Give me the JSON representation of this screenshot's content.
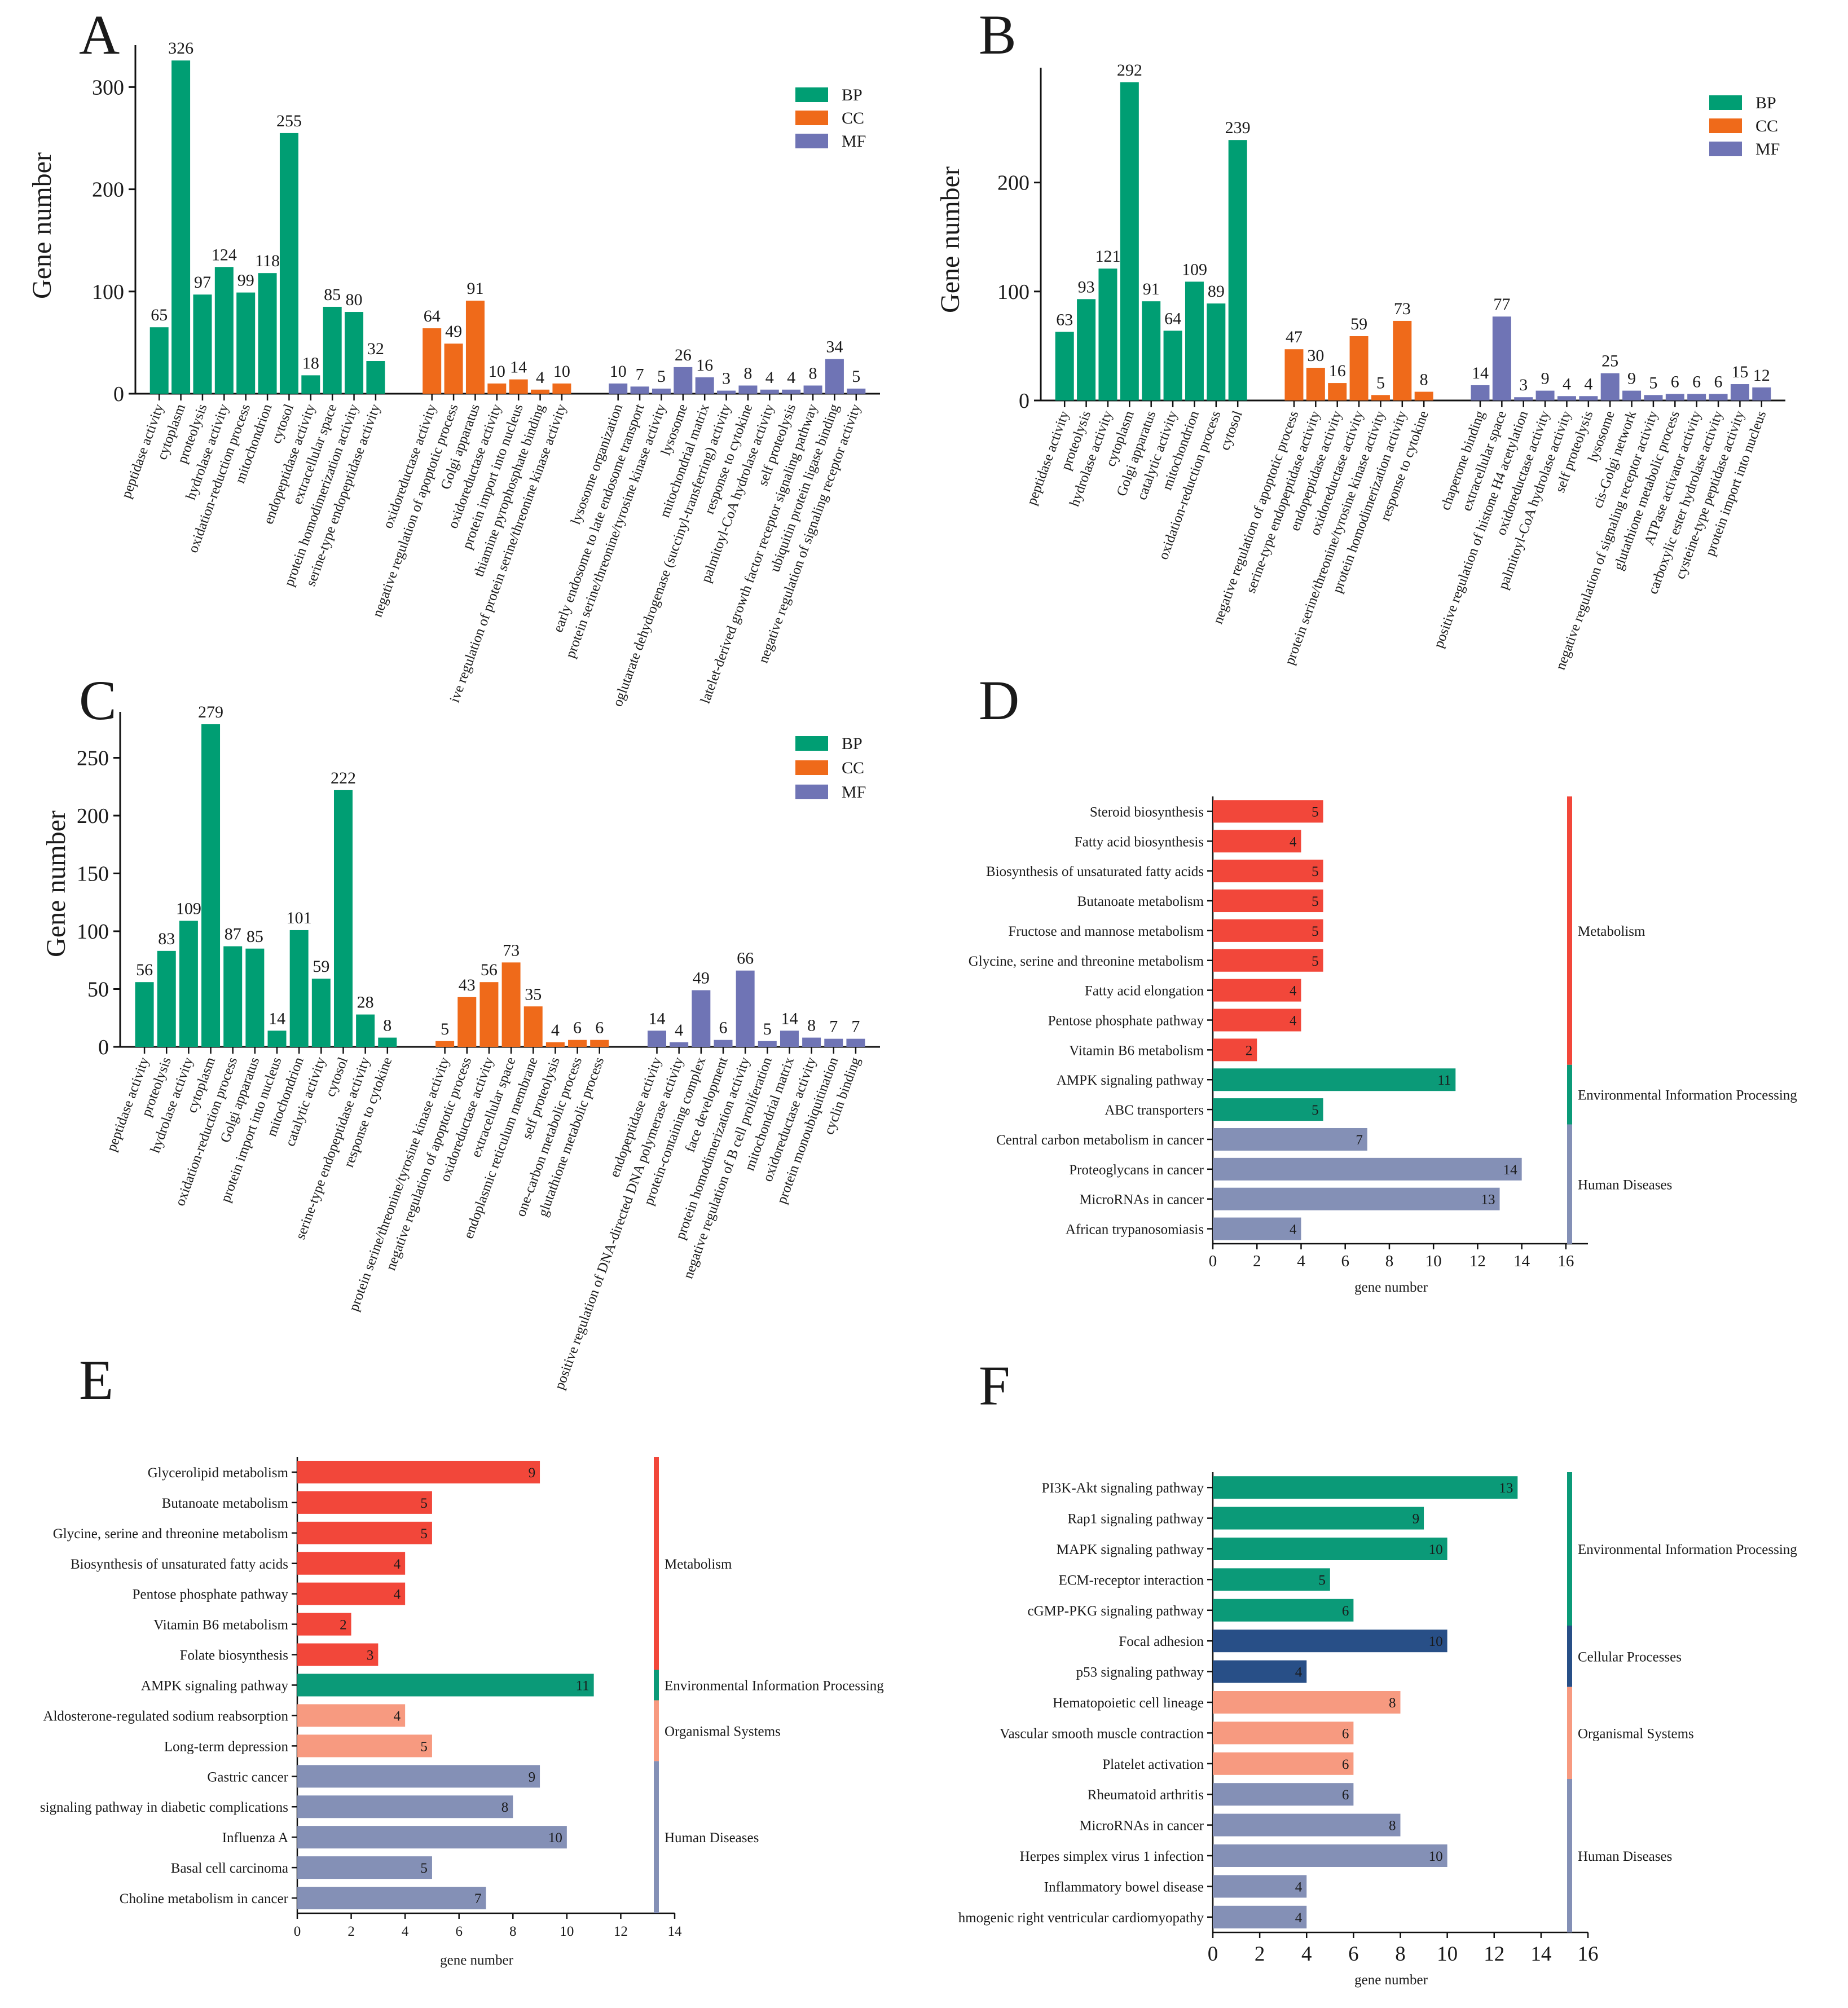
{
  "colors": {
    "BP": "#009e73",
    "CC": "#ef6a1a",
    "MF": "#6f74b5",
    "Metabolism": "#f2473a",
    "Environmental Information Processing": "#0b9a78",
    "Human Diseases": "#8490b6",
    "Organismal Systems": "#f79a80",
    "Cellular Processes": "#284f87"
  },
  "chart_data": [
    {
      "panel": "A",
      "type": "bar",
      "ylabel": "Gene number",
      "ylim": [
        0,
        330
      ],
      "yticks": [
        0,
        100,
        200,
        300
      ],
      "legend": [
        "BP",
        "CC",
        "MF"
      ],
      "groups": [
        {
          "name": "BP",
          "categories": [
            "peptidase activity",
            "cytoplasm",
            "proteolysis",
            "hydrolase activity",
            "oxidation-reduction process",
            "mitochondrion",
            "cytosol",
            "endopeptidase activity",
            "extracellular space",
            "protein homodimerization activity",
            "serine-type endopeptidase activity"
          ],
          "values": [
            65,
            326,
            97,
            124,
            99,
            118,
            255,
            18,
            85,
            80,
            32
          ]
        },
        {
          "name": "CC",
          "categories": [
            "oxidoreductase activity",
            "negative regulation of apoptotic process",
            "Golgi apparatus",
            "oxidoreductase activity",
            "protein import into nucleus",
            "thiamine pyrophosphate binding",
            "ive regulation of protein serine/threonine kinase activity"
          ],
          "values": [
            64,
            49,
            91,
            10,
            14,
            4,
            10
          ]
        },
        {
          "name": "MF",
          "categories": [
            "lysosome organization",
            "early endosome to late endosome transport",
            "protein serine/threonine/tyrosine kinase activity",
            "lysosome",
            "mitochondrial matrix",
            "oglutarate dehydrogenase (succinyl-transferring) activity",
            "response to cytokine",
            "palmitoyl-CoA hydrolase activity",
            "self proteolysis",
            "latelet-derived growth factor receptor signaling pathway",
            "ubiquitin protein ligase binding",
            "negative regulation of signaling receptor activity"
          ],
          "values": [
            10,
            7,
            5,
            26,
            16,
            3,
            8,
            4,
            4,
            8,
            34,
            5
          ]
        }
      ]
    },
    {
      "panel": "B",
      "type": "bar",
      "ylabel": "Gene number",
      "ylim": [
        0,
        295
      ],
      "yticks": [
        0,
        100,
        200
      ],
      "legend": [
        "BP",
        "CC",
        "MF"
      ],
      "groups": [
        {
          "name": "BP",
          "categories": [
            "peptidase activity",
            "proteolysis",
            "hydrolase activity",
            "cytoplasm",
            "Golgi apparatus",
            "catalytic activity",
            "mitochondrion",
            "oxidation-reduction process",
            "cytosol"
          ],
          "values": [
            63,
            93,
            121,
            292,
            91,
            64,
            109,
            89,
            239
          ]
        },
        {
          "name": "CC",
          "categories": [
            "negative regulation of apoptotic process",
            "serine-type endopeptidase activity",
            "endopeptidase activity",
            "oxidoreductase activity",
            "protein serine/threonine/tyrosine kinase activity",
            "protein homodimerization activity",
            "response to cytokine"
          ],
          "values": [
            47,
            30,
            16,
            59,
            5,
            73,
            8
          ]
        },
        {
          "name": "MF",
          "categories": [
            "chaperone binding",
            "extracellular space",
            "positive regulation of histone H4 acetylation",
            "oxidoreductase activity",
            "palmitoyl-CoA hydrolase activity",
            "self proteolysis",
            "lysosome",
            "cis-Golgi network",
            "negative regulation of signaling receptor activity",
            "glutathione metabolic process",
            "ATPase activator activity",
            "carboxylic ester hydrolase activity",
            "cysteine-type peptidase activity",
            "protein import into nucleus"
          ],
          "values": [
            14,
            77,
            3,
            9,
            4,
            4,
            25,
            9,
            5,
            6,
            6,
            6,
            15,
            12
          ]
        }
      ]
    },
    {
      "panel": "C",
      "type": "bar",
      "ylabel": "Gene number",
      "ylim": [
        0,
        280
      ],
      "yticks": [
        0,
        50,
        100,
        150,
        200,
        250
      ],
      "legend": [
        "BP",
        "CC",
        "MF"
      ],
      "groups": [
        {
          "name": "BP",
          "categories": [
            "peptidase activity",
            "proteolysis",
            "hydrolase activity",
            "cytoplasm",
            "oxidation-reduction process",
            "Golgi apparatus",
            "protein import into nucleus",
            "mitochondrion",
            "catalytic activity",
            "cytosol",
            "serine-type endopeptidase activity",
            "response to cytokine"
          ],
          "values": [
            56,
            83,
            109,
            279,
            87,
            85,
            14,
            101,
            59,
            222,
            28,
            8
          ]
        },
        {
          "name": "CC",
          "categories": [
            "protein serine/threonine/tyrosine kinase activity",
            "negative regulation of apoptotic process",
            "oxidoreductase activity",
            "extracellular space",
            "endoplasmic reticulum membrane",
            "self proteolysis",
            "one-carbon metabolic process",
            "glutathione metabolic process"
          ],
          "values": [
            5,
            43,
            56,
            73,
            35,
            4,
            6,
            6
          ]
        },
        {
          "name": "MF",
          "categories": [
            "endopeptidase activity",
            "positive regulation of DNA-directed DNA polymerase activity",
            "protein-containing complex",
            "face development",
            "protein homodimerization activity",
            "negative regulation of B cell proliferation",
            "mitochondrial matrix",
            "oxidoreductase activity",
            "protein monoubiquitination",
            "cyclin binding"
          ],
          "values": [
            14,
            4,
            49,
            6,
            66,
            5,
            14,
            8,
            7,
            7
          ]
        }
      ]
    },
    {
      "panel": "D",
      "type": "bar",
      "orientation": "horizontal",
      "xlabel": "gene number",
      "xlim": [
        0,
        17
      ],
      "xticks": [
        0,
        2,
        4,
        6,
        8,
        10,
        12,
        14,
        16
      ],
      "categories": [
        "Steroid biosynthesis",
        "Fatty acid biosynthesis",
        "Biosynthesis of unsaturated fatty acids",
        "Butanoate metabolism",
        "Fructose and mannose metabolism",
        "Glycine, serine and threonine metabolism",
        "Fatty acid elongation",
        "Pentose phosphate pathway",
        "Vitamin B6 metabolism",
        "AMPK signaling pathway",
        "ABC transporters",
        "Central carbon metabolism in cancer",
        "Proteoglycans in cancer",
        "MicroRNAs in cancer",
        "African trypanosomiasis"
      ],
      "values": [
        5,
        4,
        5,
        5,
        5,
        5,
        4,
        4,
        2,
        11,
        5,
        7,
        14,
        13,
        4
      ],
      "class": [
        "Metabolism",
        "Metabolism",
        "Metabolism",
        "Metabolism",
        "Metabolism",
        "Metabolism",
        "Metabolism",
        "Metabolism",
        "Metabolism",
        "Environmental Information Processing",
        "Environmental Information Processing",
        "Human Diseases",
        "Human Diseases",
        "Human Diseases",
        "Human Diseases"
      ],
      "classes": [
        "Metabolism",
        "Environmental Information Processing",
        "Human Diseases"
      ]
    },
    {
      "panel": "E",
      "type": "bar",
      "orientation": "horizontal",
      "xlabel": "gene number",
      "xlim": [
        0,
        14
      ],
      "xticks": [
        0,
        2,
        4,
        6,
        8,
        10,
        12,
        14
      ],
      "categories": [
        "Glycerolipid metabolism",
        "Butanoate metabolism",
        "Glycine, serine and threonine metabolism",
        "Biosynthesis of unsaturated fatty acids",
        "Pentose phosphate pathway",
        "Vitamin B6 metabolism",
        "Folate biosynthesis",
        "AMPK signaling pathway",
        "Aldosterone-regulated sodium reabsorption",
        "Long-term depression",
        "Gastric cancer",
        "signaling pathway in diabetic complications",
        "Influenza A",
        "Basal cell carcinoma",
        "Choline metabolism in cancer"
      ],
      "values": [
        9,
        5,
        5,
        4,
        4,
        2,
        3,
        11,
        4,
        5,
        9,
        8,
        10,
        5,
        7
      ],
      "class": [
        "Metabolism",
        "Metabolism",
        "Metabolism",
        "Metabolism",
        "Metabolism",
        "Metabolism",
        "Metabolism",
        "Environmental Information Processing",
        "Organismal Systems",
        "Organismal Systems",
        "Human Diseases",
        "Human Diseases",
        "Human Diseases",
        "Human Diseases",
        "Human Diseases"
      ],
      "classes": [
        "Metabolism",
        "Environmental Information Processing",
        "Organismal Systems",
        "Human Diseases"
      ]
    },
    {
      "panel": "F",
      "type": "bar",
      "orientation": "horizontal",
      "xlabel": "gene number",
      "xlim": [
        0,
        16
      ],
      "xticks": [
        0,
        2,
        4,
        6,
        8,
        10,
        12,
        14,
        16
      ],
      "categories": [
        "PI3K-Akt signaling pathway",
        "Rap1 signaling pathway",
        "MAPK signaling pathway",
        "ECM-receptor interaction",
        "cGMP-PKG signaling pathway",
        "Focal adhesion",
        "p53 signaling pathway",
        "Hematopoietic cell lineage",
        "Vascular smooth muscle contraction",
        "Platelet activation",
        "Rheumatoid arthritis",
        "MicroRNAs in cancer",
        "Herpes simplex virus 1 infection",
        "Inflammatory bowel disease",
        "hmogenic right ventricular cardiomyopathy"
      ],
      "values": [
        13,
        9,
        10,
        5,
        6,
        10,
        4,
        8,
        6,
        6,
        6,
        8,
        10,
        4,
        4
      ],
      "class": [
        "Environmental Information Processing",
        "Environmental Information Processing",
        "Environmental Information Processing",
        "Environmental Information Processing",
        "Environmental Information Processing",
        "Cellular Processes",
        "Cellular Processes",
        "Organismal Systems",
        "Organismal Systems",
        "Organismal Systems",
        "Human Diseases",
        "Human Diseases",
        "Human Diseases",
        "Human Diseases",
        "Human Diseases"
      ],
      "classes": [
        "Environmental Information Processing",
        "Cellular Processes",
        "Organismal Systems",
        "Human Diseases"
      ]
    }
  ]
}
